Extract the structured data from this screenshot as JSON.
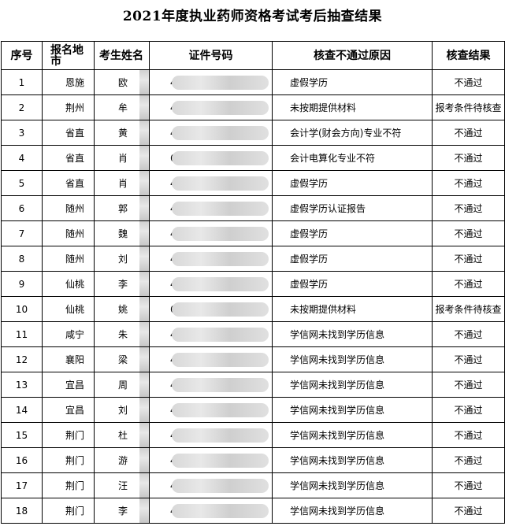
{
  "title": "2021年度执业药师资格考试考后抽查结果",
  "headers": [
    "序号",
    "报名地市",
    "考生姓名",
    "证件号码",
    "核查不通过原因",
    "核查结果"
  ],
  "rows": [
    {
      "no": "1",
      "city": "恩施",
      "name": "欧",
      "id": "4",
      "reason": "虚假学历",
      "result": "不通过"
    },
    {
      "no": "2",
      "city": "荆州",
      "name": "牟",
      "id": "4",
      "reason": "未按期提供材料",
      "result": "报考条件待核查"
    },
    {
      "no": "3",
      "city": "省直",
      "name": "黄",
      "id": "4",
      "reason": "会计学(财会方向)专业不符",
      "result": "不通过"
    },
    {
      "no": "4",
      "city": "省直",
      "name": "肖",
      "id": "6",
      "reason": "会计电算化专业不符",
      "result": "不通过"
    },
    {
      "no": "5",
      "city": "省直",
      "name": "肖",
      "id": "4",
      "reason": "虚假学历",
      "result": "不通过"
    },
    {
      "no": "6",
      "city": "随州",
      "name": "郭",
      "id": "4",
      "reason": "虚假学历认证报告",
      "result": "不通过"
    },
    {
      "no": "7",
      "city": "随州",
      "name": "魏",
      "id": "4",
      "reason": "虚假学历",
      "result": "不通过"
    },
    {
      "no": "8",
      "city": "随州",
      "name": "刘",
      "id": "4",
      "reason": "虚假学历",
      "result": "不通过"
    },
    {
      "no": "9",
      "city": "仙桃",
      "name": "李",
      "id": "4",
      "reason": "虚假学历",
      "result": "不通过"
    },
    {
      "no": "10",
      "city": "仙桃",
      "name": "姚",
      "id": "6",
      "reason": "未按期提供材料",
      "result": "报考条件待核查"
    },
    {
      "no": "11",
      "city": "咸宁",
      "name": "朱",
      "id": "4",
      "reason": "学信网未找到学历信息",
      "result": "不通过"
    },
    {
      "no": "12",
      "city": "襄阳",
      "name": "梁",
      "id": "4",
      "reason": "学信网未找到学历信息",
      "result": "不通过"
    },
    {
      "no": "13",
      "city": "宜昌",
      "name": "周",
      "id": "4",
      "reason": "学信网未找到学历信息",
      "result": "不通过"
    },
    {
      "no": "14",
      "city": "宜昌",
      "name": "刘",
      "id": "4",
      "reason": "学信网未找到学历信息",
      "result": "不通过"
    },
    {
      "no": "15",
      "city": "荆门",
      "name": "杜",
      "id": "4",
      "reason": "学信网未找到学历信息",
      "result": "不通过"
    },
    {
      "no": "16",
      "city": "荆门",
      "name": "游",
      "id": "4",
      "reason": "学信网未找到学历信息",
      "result": "不通过"
    },
    {
      "no": "17",
      "city": "荆门",
      "name": "汪",
      "id": "4",
      "reason": "学信网未找到学历信息",
      "result": "不通过"
    },
    {
      "no": "18",
      "city": "荆门",
      "name": "李",
      "id": "4",
      "reason": "学信网未找到学历信息",
      "result": "不通过"
    }
  ]
}
